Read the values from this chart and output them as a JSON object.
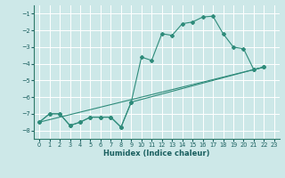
{
  "xlabel": "Humidex (Indice chaleur)",
  "bg_color": "#cde8e8",
  "grid_color": "#ffffff",
  "line_color": "#2e8b7a",
  "xlim": [
    -0.5,
    23.5
  ],
  "ylim": [
    -8.5,
    -0.5
  ],
  "yticks": [
    -8,
    -7,
    -6,
    -5,
    -4,
    -3,
    -2,
    -1
  ],
  "xticks": [
    0,
    1,
    2,
    3,
    4,
    5,
    6,
    7,
    8,
    9,
    10,
    11,
    12,
    13,
    14,
    15,
    16,
    17,
    18,
    19,
    20,
    21,
    22,
    23
  ],
  "line1_x": [
    0,
    1,
    2,
    3,
    4,
    5,
    6,
    7,
    8,
    9,
    10,
    11,
    12,
    13,
    14,
    15,
    16,
    17,
    18,
    19,
    20,
    21,
    22
  ],
  "line1_y": [
    -7.5,
    -7.0,
    -7.0,
    -7.7,
    -7.5,
    -7.2,
    -7.2,
    -7.2,
    -7.8,
    -6.3,
    -3.6,
    -3.8,
    -2.2,
    -2.3,
    -1.6,
    -1.5,
    -1.2,
    -1.15,
    -2.2,
    -3.0,
    -3.1,
    -4.35,
    -4.2
  ],
  "line2_x": [
    0,
    1,
    2,
    3,
    4,
    5,
    6,
    7,
    8,
    9,
    21,
    22
  ],
  "line2_y": [
    -7.5,
    -7.0,
    -7.0,
    -7.7,
    -7.5,
    -7.2,
    -7.2,
    -7.2,
    -7.8,
    -6.3,
    -4.35,
    -4.2
  ],
  "line3_x": [
    0,
    22
  ],
  "line3_y": [
    -7.5,
    -4.2
  ]
}
